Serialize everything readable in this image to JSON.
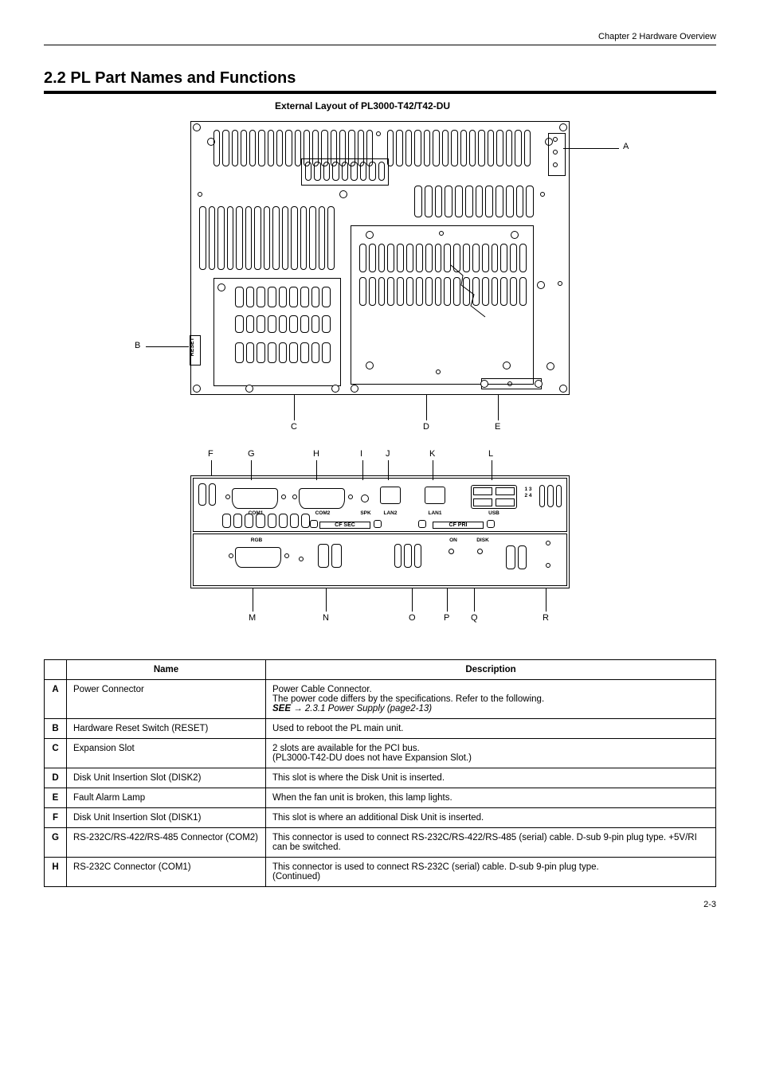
{
  "page": {
    "chapter_left": "",
    "chapter_right": "Chapter 2  Hardware Overview",
    "page_number": "2-3"
  },
  "section": {
    "title": "2.2   PL Part Names and Functions",
    "caption": "External Layout of PL3000-T42/T42-DU"
  },
  "rear_diagram": {
    "callouts": {
      "A": "A",
      "B": "B",
      "C": "C",
      "D": "D",
      "E": "E"
    },
    "reset_text": "RESET"
  },
  "bottom_diagram": {
    "port_labels": {
      "com1": "COM1",
      "com2": "COM2",
      "spk": "SPK",
      "lan2": "LAN2",
      "lan1": "LAN1",
      "usb": "USB",
      "usb_ports": "1 3\n2 4",
      "rgb": "RGB",
      "cf_sec": "CF SEC",
      "cf_pri": "CF PRI",
      "on": "ON",
      "disk": "DISK"
    },
    "callouts": {
      "F": "F",
      "G": "G",
      "H": "H",
      "I": "I",
      "J": "J",
      "K": "K",
      "L": "L",
      "M": "M",
      "N": "N",
      "O": "O",
      "P": "P",
      "Q": "Q",
      "R": "R"
    }
  },
  "table": {
    "columns": [
      "",
      "Name",
      "Description"
    ],
    "rows": [
      {
        "letter": "A",
        "name": "Power Connector",
        "desc": "Power Cable Connector.\nThe power code differs by the specifications. Refer to the following.\nSEE→ 2.3.1 Power Supply (page2-13)"
      },
      {
        "letter": "B",
        "name": "Hardware Reset Switch (RESET)",
        "desc": "Used to reboot the PL main unit."
      },
      {
        "letter": "C",
        "name": "Expansion Slot",
        "desc": "2 slots are available for the PCI bus.\n(PL3000-T42-DU does not have Expansion Slot.)"
      },
      {
        "letter": "D",
        "name": "Disk Unit Insertion Slot (DISK2)",
        "desc": "This slot is where the Disk Unit is inserted."
      },
      {
        "letter": "E",
        "name": "Fault Alarm Lamp",
        "desc": "When the fan unit is broken, this lamp lights."
      },
      {
        "letter": "F",
        "name": "Disk Unit Insertion Slot (DISK1)",
        "desc": "This slot is where an additional Disk Unit is inserted."
      },
      {
        "letter": "G",
        "name": "RS-232C/RS-422/RS-485 Connector (COM2)",
        "desc": "This connector is used to connect RS-232C/RS-422/RS-485 (serial) cable. D-sub 9-pin plug type. +5V/RI can be switched."
      },
      {
        "letter": "H",
        "name": "RS-232C Connector (COM1)",
        "desc": "This connector is used to connect RS-232C (serial) cable. D-sub 9-pin plug type.\n(Continued)"
      }
    ]
  },
  "style": {
    "text_color": "#000000",
    "bg_color": "#ffffff",
    "border_color": "#000000",
    "title_fontsize": 20,
    "body_fontsize": 11.5,
    "small_label_fontsize": 7
  }
}
